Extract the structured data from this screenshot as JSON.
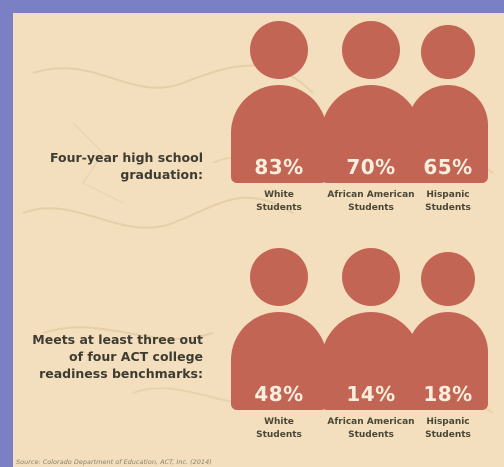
{
  "colors": {
    "frame": "#7b7fc4",
    "background": "#f3dfbd",
    "figure": "#c36554",
    "figure_text": "#fbeedd",
    "label_text": "#3e3c32"
  },
  "chart_data": [
    {
      "type": "pictograph",
      "title": "Four-year high school graduation:",
      "title_lines": [
        "Four-year high school",
        "graduation:"
      ],
      "categories": [
        "White Students",
        "African American Students",
        "Hispanic Students"
      ],
      "category_lines": [
        [
          "White",
          "Students"
        ],
        [
          "African American",
          "Students"
        ],
        [
          "Hispanic",
          "Students"
        ]
      ],
      "values": [
        83,
        70,
        65
      ],
      "value_labels": [
        "83%",
        "70%",
        "65%"
      ],
      "unit": "%"
    },
    {
      "type": "pictograph",
      "title": "Meets at least three out of four ACT college readiness benchmarks:",
      "title_lines": [
        "Meets at least three out",
        "of four ACT college",
        "readiness benchmarks:"
      ],
      "categories": [
        "White Students",
        "African American Students",
        "Hispanic Students"
      ],
      "category_lines": [
        [
          "White",
          "Students"
        ],
        [
          "African American",
          "Students"
        ],
        [
          "Hispanic",
          "Students"
        ]
      ],
      "values": [
        48,
        14,
        18
      ],
      "value_labels": [
        "48%",
        "14%",
        "18%"
      ],
      "unit": "%"
    }
  ],
  "source": "Source: Colorado Department of Education, ACT, Inc. (2014)"
}
